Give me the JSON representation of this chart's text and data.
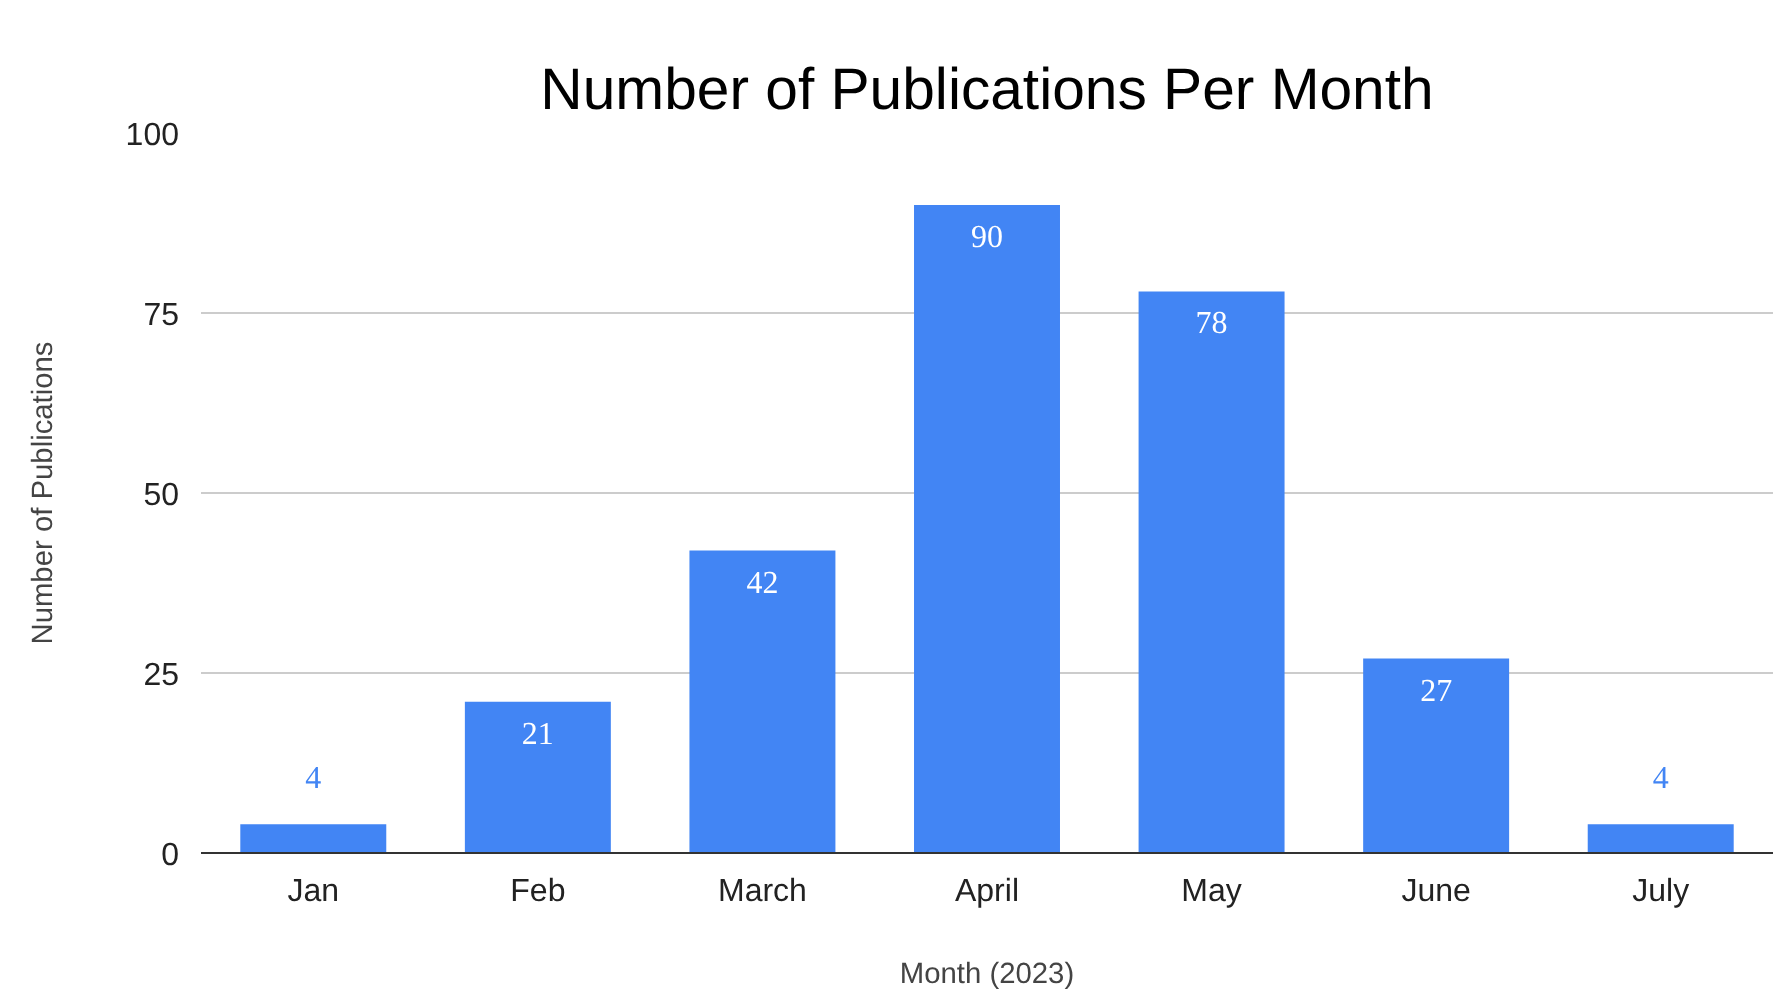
{
  "chart_data": {
    "type": "bar",
    "title": "Number of Publications Per Month",
    "xlabel": "Month (2023)",
    "ylabel": "Number of Publications",
    "categories": [
      "Jan",
      "Feb",
      "March",
      "April",
      "May",
      "June",
      "July"
    ],
    "values": [
      4,
      21,
      42,
      90,
      78,
      27,
      4
    ],
    "color": "#4285f4",
    "ylim": [
      0,
      100
    ],
    "yticks": [
      0,
      25,
      50,
      75,
      100
    ],
    "grid": "y",
    "data_labels": true
  }
}
